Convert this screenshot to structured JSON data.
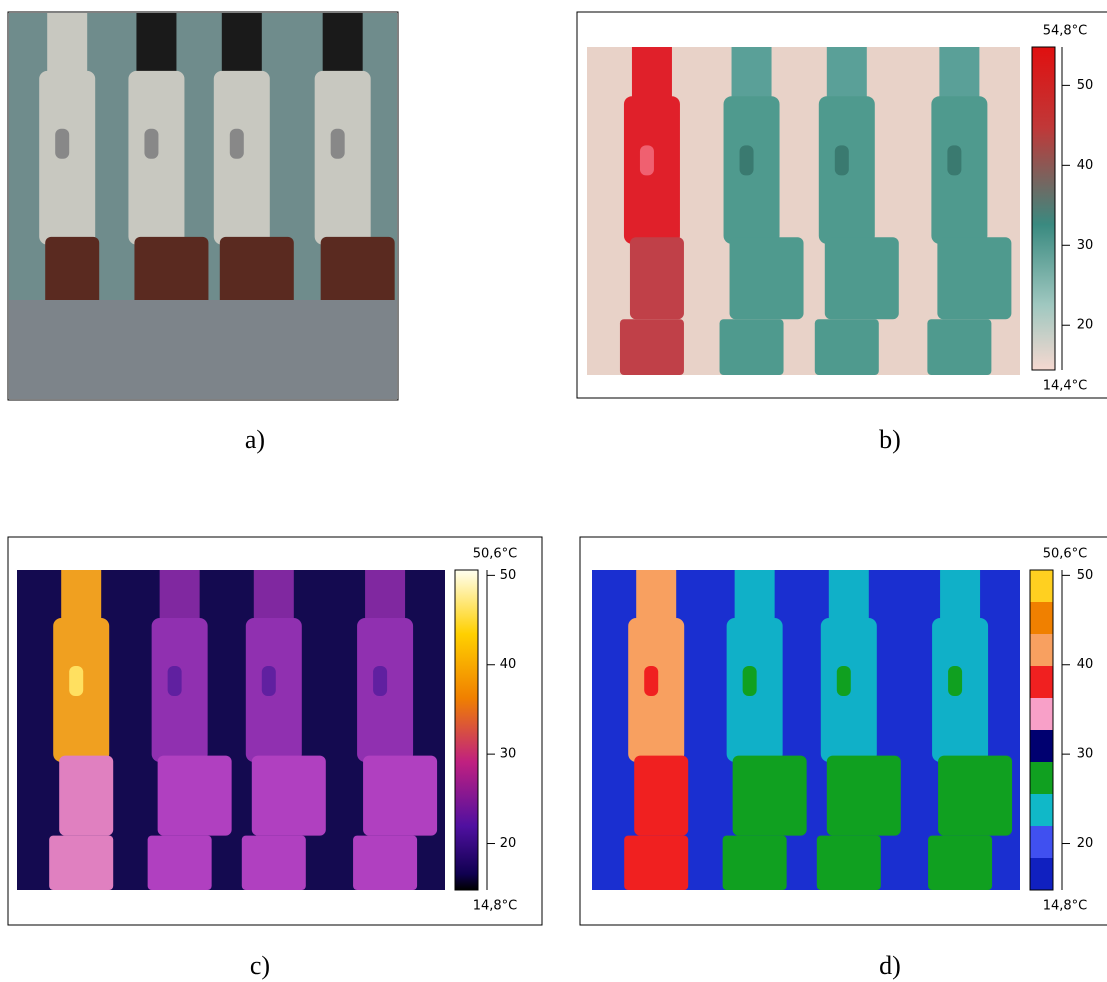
{
  "panels": [
    {
      "caption": "a)"
    },
    {
      "caption": "b)",
      "scale": {
        "max": {
          "value": 54.8,
          "label": "54,8°C"
        },
        "min": {
          "value": 14.4,
          "label": "14,4°C"
        },
        "ticks": [
          50,
          40,
          30,
          20
        ]
      }
    },
    {
      "caption": "c)",
      "scale": {
        "max": {
          "value": 50.6,
          "label": "50,6°C"
        },
        "min": {
          "value": 14.8,
          "label": "14,8°C"
        },
        "ticks": [
          50,
          40,
          30,
          20
        ]
      }
    },
    {
      "caption": "d)",
      "scale": {
        "max": {
          "value": 50.6,
          "label": "50,6°C"
        },
        "min": {
          "value": 14.8,
          "label": "14,8°C"
        },
        "ticks": [
          50,
          40,
          30,
          20
        ]
      }
    }
  ]
}
